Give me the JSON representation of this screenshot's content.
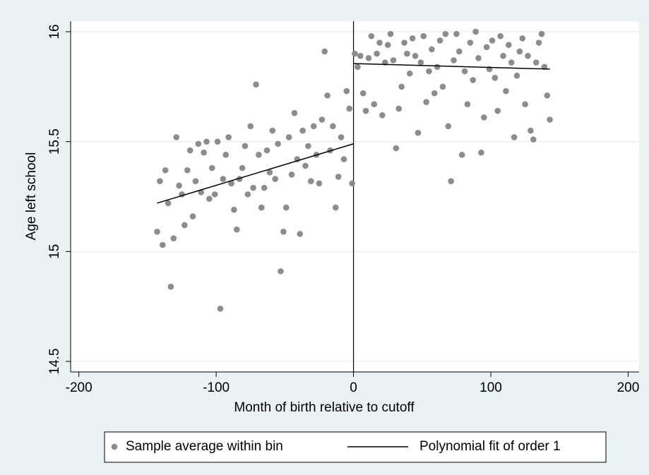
{
  "chart_data": {
    "type": "scatter",
    "x_label": "Month of birth relative to cutoff",
    "y_label": "Age left school",
    "xlim": [
      -206,
      208
    ],
    "ylim": [
      14.452,
      16.048
    ],
    "xticks": [
      -200,
      -100,
      0,
      100,
      200
    ],
    "yticks": [
      14.5,
      15,
      15.5,
      16
    ],
    "grid": true,
    "xline": 0,
    "legend": "bottom",
    "series": [
      {
        "name": "Sample average within bin",
        "type": "scatter",
        "color": "#8c8c8c",
        "x": [
          -143,
          -141,
          -139,
          -137,
          -135,
          -133,
          -131,
          -129,
          -127,
          -125,
          -123,
          -121,
          -119,
          -117,
          -115,
          -113,
          -111,
          -109,
          -107,
          -105,
          -103,
          -101,
          -99,
          -97,
          -95,
          -93,
          -91,
          -89,
          -87,
          -85,
          -83,
          -81,
          -79,
          -77,
          -75,
          -73,
          -71,
          -69,
          -67,
          -65,
          -63,
          -61,
          -59,
          -57,
          -55,
          -53,
          -51,
          -49,
          -47,
          -45,
          -43,
          -41,
          -39,
          -37,
          -35,
          -33,
          -31,
          -29,
          -27,
          -25,
          -23,
          -21,
          -19,
          -17,
          -15,
          -13,
          -11,
          -9,
          -7,
          -5,
          -3,
          -1,
          1,
          3,
          5,
          7,
          9,
          11,
          13,
          15,
          17,
          19,
          21,
          23,
          25,
          27,
          29,
          31,
          33,
          35,
          37,
          39,
          41,
          43,
          45,
          47,
          49,
          51,
          53,
          55,
          57,
          59,
          61,
          63,
          65,
          67,
          69,
          71,
          73,
          75,
          77,
          79,
          81,
          83,
          85,
          87,
          89,
          91,
          93,
          95,
          97,
          99,
          101,
          103,
          105,
          107,
          109,
          111,
          113,
          115,
          117,
          119,
          121,
          123,
          125,
          127,
          129,
          131,
          133,
          135,
          137,
          139,
          141,
          143
        ],
        "values": [
          15.09,
          15.32,
          15.03,
          15.37,
          15.22,
          14.84,
          15.06,
          15.52,
          15.3,
          15.26,
          15.12,
          15.37,
          15.46,
          15.16,
          15.32,
          15.49,
          15.27,
          15.45,
          15.5,
          15.24,
          15.38,
          15.26,
          15.5,
          14.74,
          15.33,
          15.44,
          15.52,
          15.31,
          15.19,
          15.1,
          15.33,
          15.38,
          15.48,
          15.26,
          15.57,
          15.29,
          15.76,
          15.44,
          15.2,
          15.29,
          15.46,
          15.36,
          15.55,
          15.33,
          15.49,
          14.91,
          15.09,
          15.2,
          15.52,
          15.35,
          15.63,
          15.42,
          15.08,
          15.55,
          15.39,
          15.48,
          15.32,
          15.57,
          15.44,
          15.31,
          15.6,
          15.91,
          15.71,
          15.46,
          15.57,
          15.2,
          15.34,
          15.52,
          15.42,
          15.73,
          15.65,
          15.31,
          15.9,
          15.84,
          15.89,
          15.72,
          15.64,
          15.88,
          15.98,
          15.67,
          15.9,
          15.95,
          15.62,
          15.86,
          15.94,
          15.99,
          15.87,
          15.47,
          15.65,
          15.75,
          15.95,
          15.9,
          15.81,
          15.97,
          15.89,
          15.54,
          15.86,
          15.98,
          15.68,
          15.82,
          15.92,
          15.72,
          15.84,
          15.96,
          15.75,
          15.99,
          15.57,
          15.32,
          15.87,
          15.99,
          15.91,
          15.44,
          15.82,
          15.67,
          15.95,
          15.78,
          16.0,
          15.88,
          15.45,
          15.61,
          15.93,
          15.83,
          15.96,
          15.79,
          15.64,
          15.98,
          15.89,
          15.73,
          15.94,
          15.86,
          15.52,
          15.8,
          15.91,
          15.97,
          15.67,
          15.89,
          15.55,
          15.51,
          15.86,
          15.95,
          15.99,
          15.84,
          15.71,
          15.6
        ]
      },
      {
        "name": "Polynomial fit of order 1",
        "type": "line",
        "color": "#000000",
        "x": [
          -143,
          0,
          null,
          0,
          143
        ],
        "values": [
          15.22,
          15.49,
          null,
          15.855,
          15.83
        ]
      }
    ]
  }
}
